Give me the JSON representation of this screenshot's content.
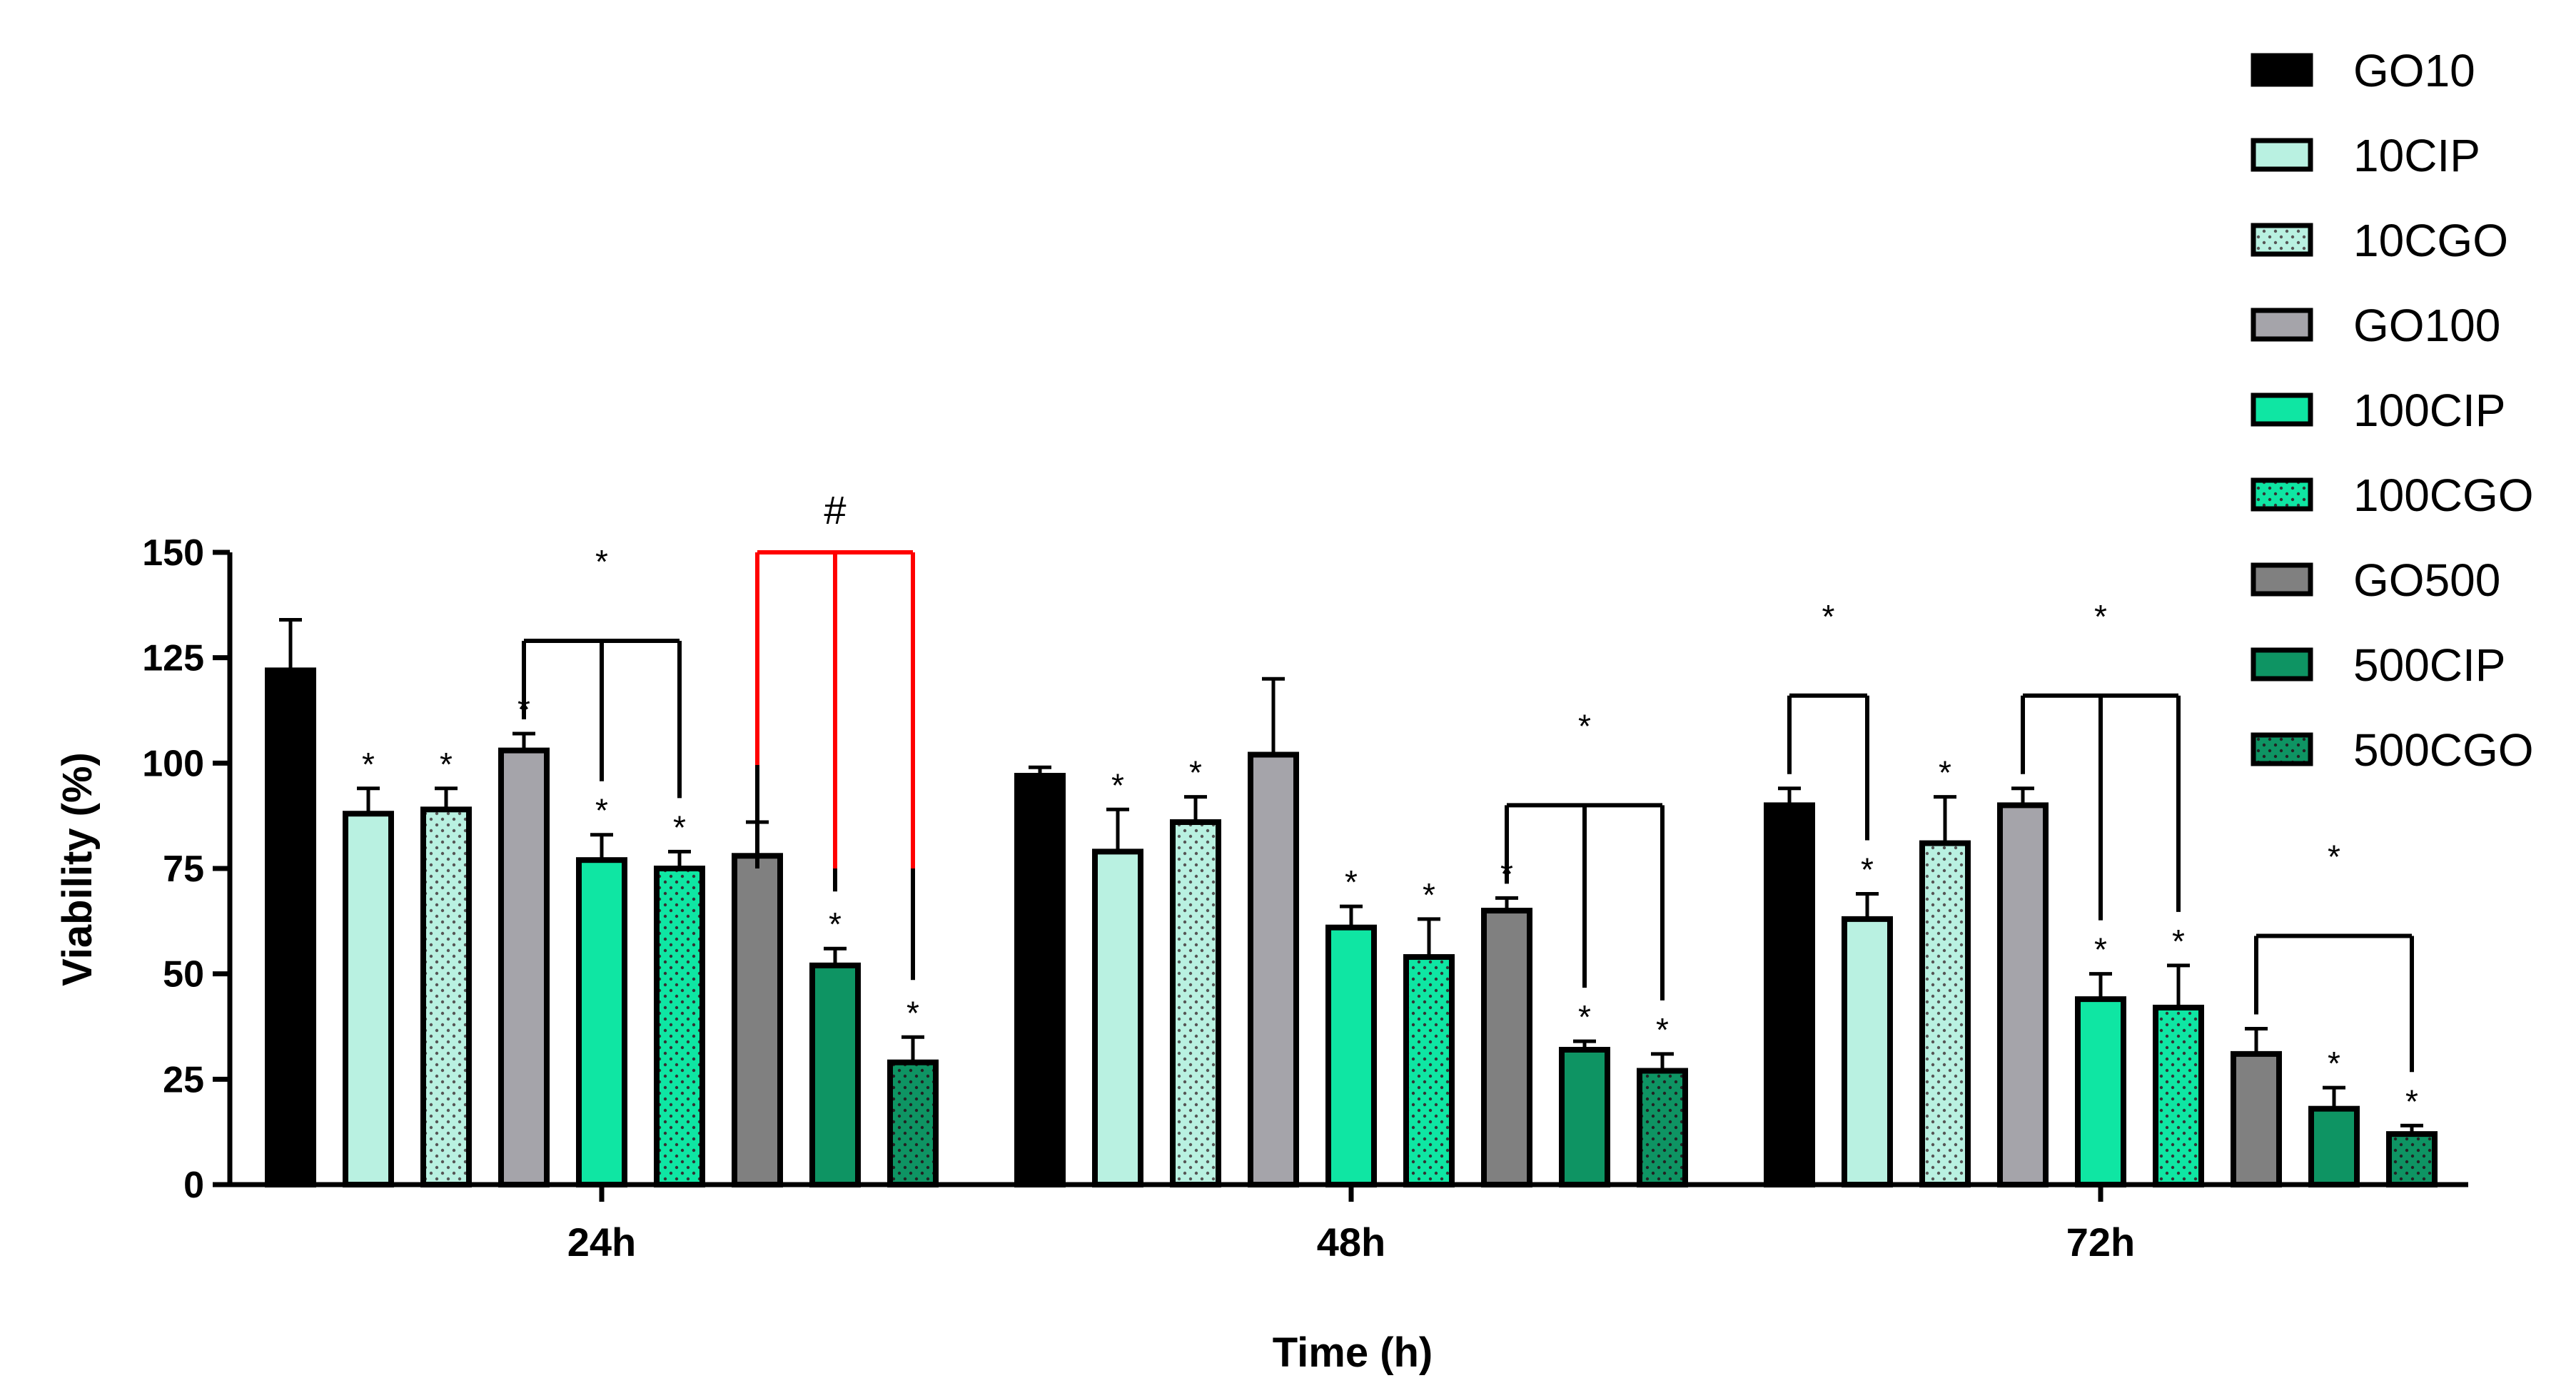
{
  "chart_data": {
    "type": "bar",
    "xlabel": "Time (h)",
    "ylabel": "Viability (%)",
    "ylim": [
      0,
      150
    ],
    "yticks": [
      0,
      25,
      50,
      75,
      100,
      125,
      150
    ],
    "categories": [
      "24h",
      "48h",
      "72h"
    ],
    "legend_position": "top-right",
    "series": [
      {
        "name": "GO10",
        "color": "#000000",
        "pattern": "solid",
        "values": [
          122,
          97,
          90
        ],
        "errors": [
          12,
          2,
          4
        ],
        "significant": [
          false,
          false,
          false
        ]
      },
      {
        "name": "10CIP",
        "color": "#b9f1e1",
        "pattern": "solid",
        "values": [
          88,
          79,
          63
        ],
        "errors": [
          6,
          10,
          6
        ],
        "significant": [
          true,
          true,
          true
        ]
      },
      {
        "name": "10CGO",
        "color": "#b9f1e1",
        "pattern": "dotted",
        "values": [
          89,
          86,
          81
        ],
        "errors": [
          5,
          6,
          11
        ],
        "significant": [
          true,
          true,
          true
        ]
      },
      {
        "name": "GO100",
        "color": "#a5a4aa",
        "pattern": "solid",
        "values": [
          103,
          102,
          90
        ],
        "errors": [
          4,
          18,
          4
        ],
        "significant": [
          true,
          false,
          false
        ]
      },
      {
        "name": "100CIP",
        "color": "#0fe6a3",
        "pattern": "solid",
        "values": [
          77,
          61,
          44
        ],
        "errors": [
          6,
          5,
          6
        ],
        "significant": [
          true,
          true,
          true
        ]
      },
      {
        "name": "100CGO",
        "color": "#0fe6a3",
        "pattern": "dotted",
        "values": [
          75,
          54,
          42
        ],
        "errors": [
          4,
          9,
          10
        ],
        "significant": [
          true,
          true,
          true
        ]
      },
      {
        "name": "GO500",
        "color": "#808080",
        "pattern": "solid",
        "values": [
          78,
          65,
          31
        ],
        "errors": [
          8,
          3,
          6
        ],
        "significant": [
          false,
          true,
          false
        ]
      },
      {
        "name": "500CIP",
        "color": "#0e9463",
        "pattern": "solid",
        "values": [
          52,
          32,
          18
        ],
        "errors": [
          4,
          2,
          5
        ],
        "significant": [
          true,
          true,
          true
        ]
      },
      {
        "name": "500CGO",
        "color": "#0e9463",
        "pattern": "dotted",
        "values": [
          29,
          27,
          12
        ],
        "errors": [
          6,
          4,
          2
        ],
        "significant": [
          true,
          true,
          true
        ]
      }
    ],
    "brackets": [
      {
        "group": 0,
        "from": 3,
        "to": [
          4,
          5
        ],
        "label": "*",
        "color": "#000000"
      },
      {
        "group": 0,
        "from": 6,
        "to": [
          7,
          8
        ],
        "label": "#",
        "color": "#ff0000"
      },
      {
        "group": 1,
        "from": 6,
        "to": [
          7,
          8
        ],
        "label": "*",
        "color": "#000000"
      },
      {
        "group": 2,
        "from": 0,
        "to": [
          1
        ],
        "label": "*",
        "color": "#000000"
      },
      {
        "group": 2,
        "from": 3,
        "to": [
          4,
          5
        ],
        "label": "*",
        "color": "#000000"
      },
      {
        "group": 2,
        "from": 6,
        "to": [
          8
        ],
        "label": "*",
        "color": "#000000"
      }
    ]
  }
}
